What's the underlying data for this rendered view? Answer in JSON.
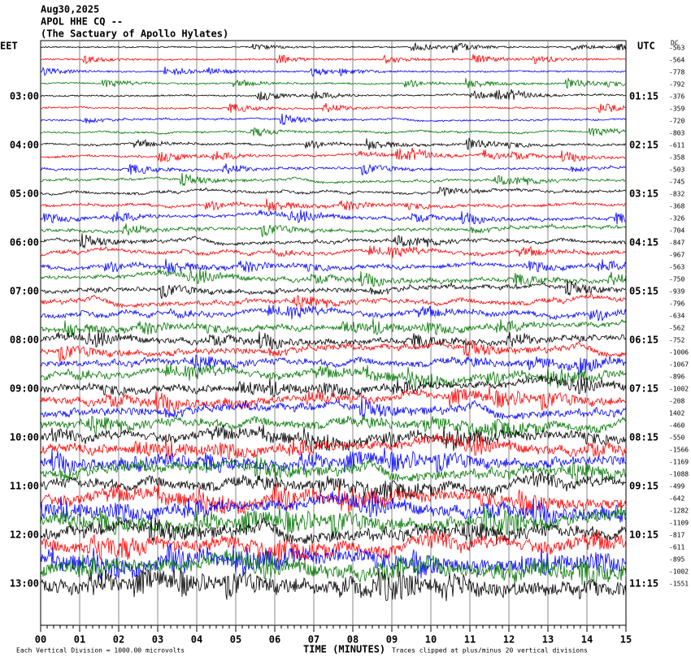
{
  "header": [
    "Aug30,2025",
    "APOL HHE CQ --",
    "(The Sactuary of Apollo Hylates)"
  ],
  "left_zone": "EET",
  "right_zone": "UTC",
  "dc_label": "DC",
  "left_labels": [
    "03:00",
    "04:00",
    "05:00",
    "06:00",
    "07:00",
    "08:00",
    "09:00",
    "10:00",
    "11:00",
    "12:00",
    "13:00"
  ],
  "right_labels": [
    "01:15",
    "02:15",
    "03:15",
    "04:15",
    "05:15",
    "06:15",
    "07:15",
    "08:15",
    "09:15",
    "10:15",
    "11:15"
  ],
  "dc_offsets": [
    -563,
    -564,
    -778,
    -792,
    -376,
    -359,
    -720,
    -803,
    -611,
    -358,
    -503,
    -745,
    -832,
    -368,
    -326,
    -704,
    -847,
    -967,
    -563,
    -750,
    -939,
    -796,
    -634,
    -562,
    -752,
    -1006,
    -1067,
    -896,
    -1002,
    -208,
    1402,
    -460,
    -550,
    -1566,
    -1169,
    -1088,
    -499,
    -642,
    -1282,
    -1109,
    -817,
    -611,
    -895,
    -1002,
    -1551
  ],
  "x_ticks": [
    "00",
    "01",
    "02",
    "03",
    "04",
    "05",
    "06",
    "07",
    "08",
    "09",
    "10",
    "11",
    "12",
    "13",
    "14",
    "15"
  ],
  "x_label": "TIME (MINUTES)",
  "footer_left": "Each Vertical Division = 1000.00 microvolts",
  "footer_right": "Traces clipped at plus/minus 20 vertical divisions"
}
